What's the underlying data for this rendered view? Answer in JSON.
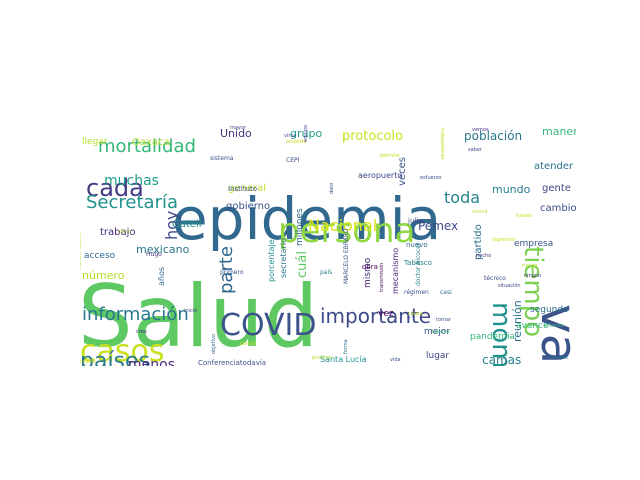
{
  "words": [
    {
      "text": "Salud",
      "size": 86,
      "color": "#5ec962"
    },
    {
      "text": "epidemia",
      "size": 58,
      "color": "#31688e"
    },
    {
      "text": "semana",
      "size": 50,
      "color": "#440154"
    },
    {
      "text": "vacuna",
      "size": 50,
      "color": "#3b528b",
      "rot": 90
    },
    {
      "text": "persona",
      "size": 34,
      "color": "#90d743"
    },
    {
      "text": "COVID",
      "size": 30,
      "color": "#3b528b"
    },
    {
      "text": "casos",
      "size": 30,
      "color": "#c8e020"
    },
    {
      "text": "momento",
      "size": 26,
      "color": "#21918c",
      "rot": 90
    },
    {
      "text": "tiempo",
      "size": 26,
      "color": "#7ad151",
      "rot": 90
    },
    {
      "text": "cada",
      "size": 24,
      "color": "#443983"
    },
    {
      "text": "países",
      "size": 22,
      "color": "#287c8e"
    },
    {
      "text": "importante",
      "size": 20,
      "color": "#3e4989"
    },
    {
      "text": "información",
      "size": 18,
      "color": "#2a788e"
    },
    {
      "text": "mortalidad",
      "size": 18,
      "color": "#35b779"
    },
    {
      "text": "Secretaría",
      "size": 18,
      "color": "#21918c"
    },
    {
      "text": "parte",
      "size": 18,
      "color": "#31688e",
      "rot": -90
    },
    {
      "text": "hoy",
      "size": 16,
      "color": "#3e4989",
      "rot": -90
    },
    {
      "text": "toda",
      "size": 16,
      "color": "#26828e"
    },
    {
      "text": "Nacional",
      "size": 16,
      "color": "#d8e219"
    },
    {
      "text": "menos",
      "size": 14,
      "color": "#482878"
    },
    {
      "text": "muchas",
      "size": 14,
      "color": "#1f9e89"
    },
    {
      "text": "protocolo",
      "size": 13,
      "color": "#c8e020"
    },
    {
      "text": "cuál",
      "size": 13,
      "color": "#5ec962",
      "rot": -90
    },
    {
      "text": "camas",
      "size": 12,
      "color": "#26828e"
    },
    {
      "text": "Pemex",
      "size": 12,
      "color": "#3e4989"
    },
    {
      "text": "población",
      "size": 12,
      "color": "#2a788e"
    },
    {
      "text": "Unido",
      "size": 11,
      "color": "#46327e"
    },
    {
      "text": "grupo",
      "size": 11,
      "color": "#1f9e89"
    },
    {
      "text": "manera",
      "size": 11,
      "color": "#35b779"
    },
    {
      "text": "mundo",
      "size": 11,
      "color": "#287c8e"
    },
    {
      "text": "reunión",
      "size": 11,
      "color": "#2c728e",
      "rot": -90
    },
    {
      "text": "número",
      "size": 11,
      "color": "#b5de2b"
    },
    {
      "text": "mexicano",
      "size": 11,
      "color": "#2a788e"
    },
    {
      "text": "trabajo",
      "size": 10,
      "color": "#482878"
    },
    {
      "text": "Gatell",
      "size": 10,
      "color": "#21918c"
    },
    {
      "text": "veces",
      "size": 10,
      "color": "#3b528b",
      "rot": -90
    },
    {
      "text": "general",
      "size": 10,
      "color": "#bddf26"
    },
    {
      "text": "gobierno",
      "size": 10,
      "color": "#3b528b"
    },
    {
      "text": "partido",
      "size": 10,
      "color": "#2c728e",
      "rot": -90
    },
    {
      "text": "Oaxaca",
      "size": 10,
      "color": "#b5de2b"
    },
    {
      "text": "atender",
      "size": 10,
      "color": "#2c728e"
    },
    {
      "text": "gente",
      "size": 10,
      "color": "#3e4989"
    },
    {
      "text": "cambio",
      "size": 10,
      "color": "#3e4989"
    },
    {
      "text": "empresa",
      "size": 9,
      "color": "#3b528b"
    },
    {
      "text": "segundo",
      "size": 9,
      "color": "#2c728e"
    },
    {
      "text": "pandemia",
      "size": 9,
      "color": "#35b779"
    },
    {
      "text": "avance",
      "size": 9,
      "color": "#35b779"
    },
    {
      "text": "lugar",
      "size": 9,
      "color": "#3e4989"
    },
    {
      "text": "mejor",
      "size": 9,
      "color": "#3b528b"
    },
    {
      "text": "vez",
      "size": 9,
      "color": "#440154"
    },
    {
      "text": "mismo",
      "size": 9,
      "color": "#482878",
      "rot": -90
    },
    {
      "text": "millones",
      "size": 9,
      "color": "#31688e",
      "rot": -90
    },
    {
      "text": "porcentaje",
      "size": 8,
      "color": "#21918c",
      "rot": -90
    },
    {
      "text": "secretario",
      "size": 8,
      "color": "#2a788e",
      "rot": -90
    },
    {
      "text": "mecanismo",
      "size": 8,
      "color": "#482878",
      "rot": -90
    },
    {
      "text": "acceso",
      "size": 9,
      "color": "#31688e"
    },
    {
      "text": "llegar",
      "size": 9,
      "color": "#b5de2b"
    },
    {
      "text": "años",
      "size": 8,
      "color": "#31688e",
      "rot": -90
    },
    {
      "text": "aeropuerto",
      "size": 8,
      "color": "#3e4989"
    },
    {
      "text": "Instituto",
      "size": 7,
      "color": "#3b528b"
    },
    {
      "text": "julio",
      "size": 7,
      "color": "#3e4989"
    },
    {
      "text": "1º",
      "size": 8,
      "color": "#3e4989"
    },
    {
      "text": "nuevo",
      "size": 7,
      "color": "#31688e"
    },
    {
      "text": "obra",
      "size": 7,
      "color": "#440154"
    },
    {
      "text": "Tabasco",
      "size": 7,
      "color": "#26828e"
    },
    {
      "text": "MARCELO EBRARD",
      "size": 6,
      "color": "#3b528b",
      "rot": -90
    },
    {
      "text": "doctor Alcocer",
      "size": 6,
      "color": "#26828e",
      "rot": -90
    },
    {
      "text": "Santa Lucía",
      "size": 8,
      "color": "#21918c"
    },
    {
      "text": "Conferenciatodavía",
      "size": 7,
      "color": "#3b528b"
    },
    {
      "text": "primero",
      "size": 6,
      "color": "#3b528b"
    },
    {
      "text": "Hugo",
      "size": 6,
      "color": "#46327e"
    },
    {
      "text": "cinco",
      "size": 5,
      "color": "#b5de2b"
    },
    {
      "text": "país",
      "size": 6,
      "color": "#26828e"
    },
    {
      "text": "régimen",
      "size": 6,
      "color": "#3b528b"
    },
    {
      "text": "casi",
      "size": 6,
      "color": "#2c728e"
    },
    {
      "text": "tomar",
      "size": 5,
      "color": "#3b528b"
    },
    {
      "text": "causa",
      "size": 5,
      "color": "#bddf26"
    },
    {
      "text": "Lozoya",
      "size": 5,
      "color": "#35b779"
    },
    {
      "text": "vida",
      "size": 5,
      "color": "#3b528b"
    },
    {
      "text": "positivo",
      "size": 5,
      "color": "#b5de2b"
    },
    {
      "text": "forma",
      "size": 5,
      "color": "#2a788e",
      "rot": -90
    },
    {
      "text": "contar",
      "size": 5,
      "color": "#c8e020"
    },
    {
      "text": "objetivo",
      "size": 5,
      "color": "#31688e",
      "rot": -90
    },
    {
      "text": "inicio",
      "size": 5,
      "color": "#3e4989"
    },
    {
      "text": "creo",
      "size": 5,
      "color": "#46327e"
    },
    {
      "text": "casilla",
      "size": 5,
      "color": "#c8e020"
    },
    {
      "text": "siempre",
      "size": 5,
      "color": "#2a788e"
    },
    {
      "text": "informe",
      "size": 5,
      "color": "#35b779"
    },
    {
      "text": "técnico",
      "size": 6,
      "color": "#3e4989"
    },
    {
      "text": "situación",
      "size": 5,
      "color": "#3e4989"
    },
    {
      "text": "ningún",
      "size": 5,
      "color": "#46327e"
    },
    {
      "text": "riesgo",
      "size": 5,
      "color": "#b5de2b"
    },
    {
      "text": "través",
      "size": 5,
      "color": "#c8e020"
    },
    {
      "text": "nunca",
      "size": 5,
      "color": "#b5de2b"
    },
    {
      "text": "ingeniero",
      "size": 5,
      "color": "#c8e020"
    },
    {
      "text": "hecho",
      "size": 5,
      "color": "#46327e"
    },
    {
      "text": "esfuerzo",
      "size": 5,
      "color": "#3b528b"
    },
    {
      "text": "trabajadores",
      "size": 5,
      "color": "#c8e020",
      "rot": 90
    },
    {
      "text": "saber",
      "size": 5,
      "color": "#3e4989"
    },
    {
      "text": "vemos",
      "size": 5,
      "color": "#46327e"
    },
    {
      "text": "permite",
      "size": 5,
      "color": "#c8e020"
    },
    {
      "text": "dato",
      "size": 5,
      "color": "#3b528b",
      "rot": -90
    },
    {
      "text": "transmisión",
      "size": 5,
      "color": "#440154",
      "rot": -90
    },
    {
      "text": "CEPI",
      "size": 6,
      "color": "#3e4989"
    },
    {
      "text": "acuerdo",
      "size": 5,
      "color": "#c8e020"
    },
    {
      "text": "virus",
      "size": 5,
      "color": "#3e4989"
    },
    {
      "text": "mayor",
      "size": 5,
      "color": "#3e4989"
    },
    {
      "text": "sistema",
      "size": 6,
      "color": "#3b528b"
    },
    {
      "text": "transformación",
      "size": 5,
      "color": "#b5de2b",
      "rot": -90
    },
    {
      "text": "equipo",
      "size": 5,
      "color": "#3e4989",
      "rot": -90
    }
  ]
}
